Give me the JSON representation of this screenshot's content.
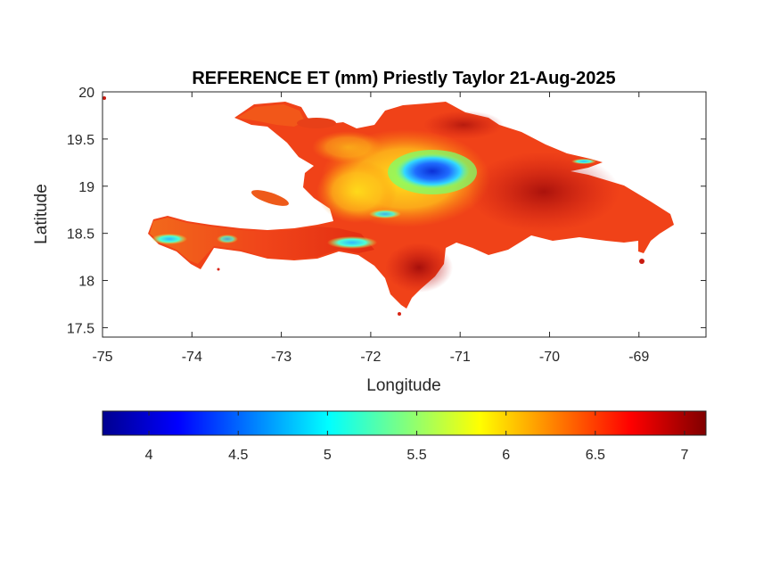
{
  "chart_data": {
    "type": "heatmap",
    "title": "REFERENCE ET (mm) Priestly Taylor 21-Aug-2025",
    "xlabel": "Longitude",
    "ylabel": "Latitude",
    "xlim": [
      -75,
      -68.25
    ],
    "ylim": [
      17.4,
      20
    ],
    "x_ticks": [
      "-75",
      "-74",
      "-73",
      "-72",
      "-71",
      "-70",
      "-69"
    ],
    "y_ticks": [
      "20",
      "19.5",
      "19",
      "18.5",
      "18",
      "17.5"
    ],
    "colorbar": {
      "colormap": "jet",
      "range": [
        3.74,
        7.12
      ],
      "ticks": [
        "4",
        "4.5",
        "5",
        "5.5",
        "6",
        "6.5",
        "7"
      ],
      "placement": "below"
    },
    "field_summary": {
      "dominant_range": [
        6.3,
        7.0
      ],
      "minimum_region": {
        "lon": -71.35,
        "lat": 19.1,
        "value": 4.1
      },
      "low_regions": [
        {
          "lon": -74.3,
          "lat": 18.45,
          "value": 5.0
        },
        {
          "lon": -72.3,
          "lat": 18.42,
          "value": 4.6
        },
        {
          "lon": -71.8,
          "lat": 18.7,
          "value": 5.2
        },
        {
          "lon": -69.6,
          "lat": 19.27,
          "value": 5.3
        }
      ]
    },
    "grid": false,
    "box": true
  }
}
